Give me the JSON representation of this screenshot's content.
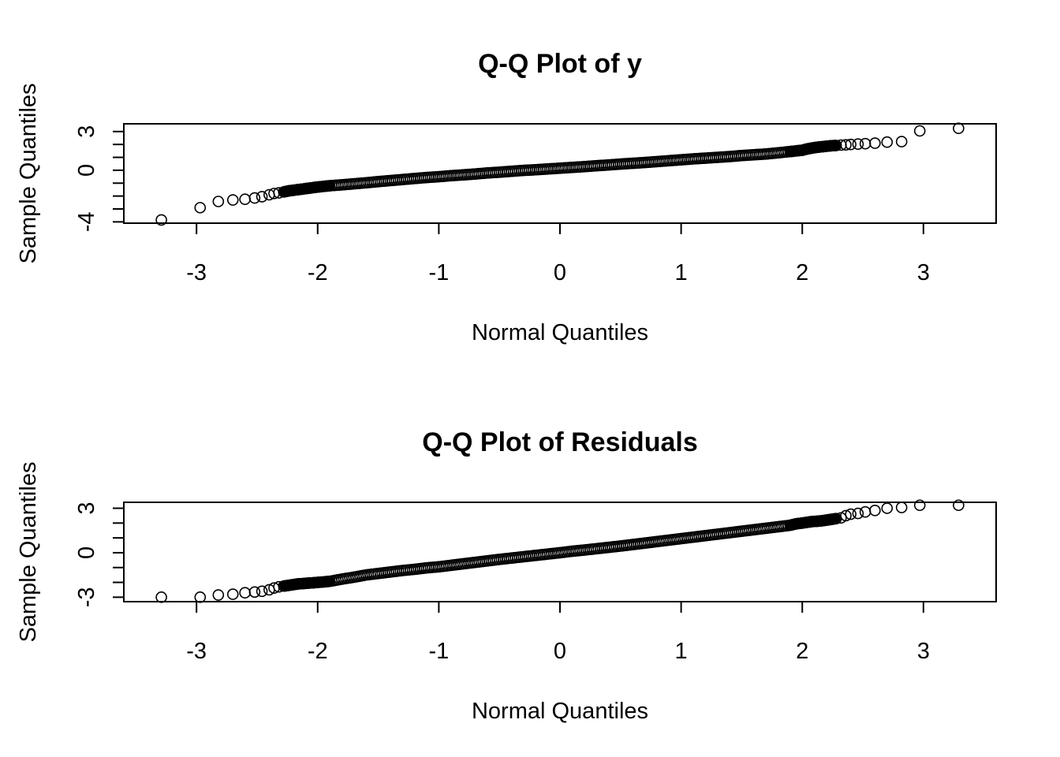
{
  "chart_data": [
    {
      "type": "scatter",
      "title": "Q-Q Plot of y",
      "xlabel": "Normal Quantiles",
      "ylabel": "Sample Quantiles",
      "xlim": [
        -3.6,
        3.6
      ],
      "ylim": [
        -4.1,
        3.6
      ],
      "x_ticks": [
        -3,
        -2,
        -1,
        0,
        1,
        2,
        3
      ],
      "x_tick_labels": [
        "-3",
        "-2",
        "-1",
        "0",
        "1",
        "2",
        "3"
      ],
      "y_ticks": [
        -4,
        -3,
        -2,
        -1,
        0,
        1,
        2,
        3
      ],
      "y_tick_labels": [
        "-4",
        "",
        "",
        "",
        "0",
        "",
        "",
        "3"
      ],
      "grid": false,
      "legend": "none",
      "series": [
        {
          "points": {
            "x": [
              -3.29,
              -2.97,
              -2.82,
              -2.7,
              -2.6,
              -2.52,
              -2.46,
              -2.4,
              -2.36,
              -2.32,
              -2.28,
              -2.24,
              -2.2,
              -2.16,
              -2.12,
              -2.08,
              -2.04,
              -2.0,
              -1.95,
              -1.9,
              -1.8,
              -1.7,
              -1.6,
              -1.5,
              -1.4,
              -1.3,
              -1.2,
              -1.1,
              -1.0,
              -0.9,
              -0.8,
              -0.7,
              -0.6,
              -0.5,
              -0.4,
              -0.3,
              -0.2,
              -0.1,
              0.0,
              0.1,
              0.2,
              0.3,
              0.4,
              0.5,
              0.6,
              0.7,
              0.8,
              0.9,
              1.0,
              1.1,
              1.2,
              1.3,
              1.4,
              1.5,
              1.6,
              1.7,
              1.8,
              1.9,
              1.95,
              2.0,
              2.04,
              2.08,
              2.12,
              2.16,
              2.2,
              2.24,
              2.28,
              2.32,
              2.36,
              2.4,
              2.46,
              2.52,
              2.6,
              2.7,
              2.82,
              2.97,
              3.29
            ],
            "y": [
              -3.85,
              -2.9,
              -2.42,
              -2.3,
              -2.25,
              -2.15,
              -2.05,
              -1.9,
              -1.8,
              -1.75,
              -1.68,
              -1.6,
              -1.55,
              -1.5,
              -1.45,
              -1.4,
              -1.35,
              -1.3,
              -1.25,
              -1.2,
              -1.13,
              -1.05,
              -0.97,
              -0.88,
              -0.8,
              -0.72,
              -0.64,
              -0.56,
              -0.5,
              -0.42,
              -0.36,
              -0.29,
              -0.21,
              -0.15,
              -0.08,
              -0.01,
              0.04,
              0.1,
              0.16,
              0.22,
              0.28,
              0.35,
              0.41,
              0.48,
              0.54,
              0.6,
              0.67,
              0.74,
              0.81,
              0.88,
              0.94,
              1.0,
              1.06,
              1.14,
              1.2,
              1.26,
              1.35,
              1.45,
              1.5,
              1.55,
              1.65,
              1.72,
              1.78,
              1.82,
              1.86,
              1.9,
              1.92,
              1.95,
              1.97,
              2.0,
              2.03,
              2.06,
              2.1,
              2.18,
              2.22,
              3.05,
              3.25
            ]
          }
        }
      ]
    },
    {
      "type": "scatter",
      "title": "Q-Q Plot of Residuals",
      "xlabel": "Normal Quantiles",
      "ylabel": "Sample Quantiles",
      "xlim": [
        -3.6,
        3.6
      ],
      "ylim": [
        -3.3,
        3.4
      ],
      "x_ticks": [
        -3,
        -2,
        -1,
        0,
        1,
        2,
        3
      ],
      "x_tick_labels": [
        "-3",
        "-2",
        "-1",
        "0",
        "1",
        "2",
        "3"
      ],
      "y_ticks": [
        -3,
        -2,
        -1,
        0,
        1,
        2,
        3
      ],
      "y_tick_labels": [
        "-3",
        "",
        "",
        "0",
        "",
        "",
        "3"
      ],
      "grid": false,
      "legend": "none",
      "series": [
        {
          "points": {
            "x": [
              -3.29,
              -2.97,
              -2.82,
              -2.7,
              -2.6,
              -2.52,
              -2.46,
              -2.4,
              -2.36,
              -2.32,
              -2.28,
              -2.24,
              -2.2,
              -2.16,
              -2.12,
              -2.08,
              -2.04,
              -2.0,
              -1.95,
              -1.9,
              -1.8,
              -1.7,
              -1.6,
              -1.5,
              -1.4,
              -1.3,
              -1.2,
              -1.1,
              -1.0,
              -0.9,
              -0.8,
              -0.7,
              -0.6,
              -0.5,
              -0.4,
              -0.3,
              -0.2,
              -0.1,
              0.0,
              0.1,
              0.2,
              0.3,
              0.4,
              0.5,
              0.6,
              0.7,
              0.8,
              0.9,
              1.0,
              1.1,
              1.2,
              1.3,
              1.4,
              1.5,
              1.6,
              1.7,
              1.8,
              1.9,
              1.95,
              2.0,
              2.04,
              2.08,
              2.12,
              2.16,
              2.2,
              2.24,
              2.28,
              2.32,
              2.36,
              2.4,
              2.46,
              2.52,
              2.6,
              2.7,
              2.82,
              2.97,
              3.29
            ],
            "y": [
              -3.0,
              -3.0,
              -2.85,
              -2.8,
              -2.7,
              -2.65,
              -2.6,
              -2.5,
              -2.38,
              -2.3,
              -2.25,
              -2.2,
              -2.15,
              -2.1,
              -2.08,
              -2.05,
              -2.03,
              -2.0,
              -1.97,
              -1.93,
              -1.78,
              -1.65,
              -1.5,
              -1.4,
              -1.3,
              -1.2,
              -1.12,
              -1.02,
              -0.95,
              -0.85,
              -0.75,
              -0.65,
              -0.55,
              -0.45,
              -0.36,
              -0.27,
              -0.18,
              -0.09,
              0.0,
              0.1,
              0.18,
              0.27,
              0.36,
              0.45,
              0.55,
              0.65,
              0.75,
              0.85,
              0.95,
              1.05,
              1.15,
              1.25,
              1.35,
              1.45,
              1.55,
              1.65,
              1.75,
              1.85,
              1.95,
              2.0,
              2.05,
              2.1,
              2.12,
              2.15,
              2.2,
              2.25,
              2.3,
              2.35,
              2.5,
              2.6,
              2.65,
              2.75,
              2.85,
              3.0,
              3.05,
              3.2,
              3.2
            ]
          }
        }
      ]
    }
  ]
}
